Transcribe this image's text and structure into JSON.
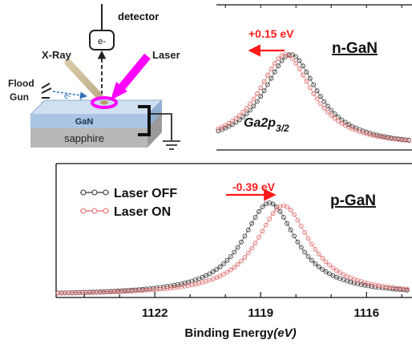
{
  "colors": {
    "off": "#333333",
    "on": "#e06a6a",
    "shift_arrow": "#ff1a1a",
    "laser": "#ff00ff",
    "gan_top": "#cfe0f2",
    "gan_side": "#8faed0",
    "sapphire": "#b8b8b8"
  },
  "schematic": {
    "detector_label": "detector",
    "detector_symbol": "e-",
    "xray_label": "X-Ray",
    "laser_label": "Laser",
    "flood_gun_label_1": "Flood",
    "flood_gun_label_2": "Gun",
    "electron_symbol": "e-",
    "gan_label": "GaN",
    "sapphire_label": "sapphire",
    "icons": [
      "detector-box-icon",
      "x-ray-beam-icon",
      "laser-beam-icon",
      "flood-gun-icon",
      "ground-icon"
    ]
  },
  "chart_data": [
    {
      "type": "line",
      "panel": "top",
      "title": "n-GaN",
      "peak_label": "Ga2p3/2",
      "shift_label": "+0.15 eV",
      "shift_direction": "left",
      "x_reversed": true,
      "xlim": [
        1124.8,
        1114.2
      ],
      "grid": false,
      "series": [
        {
          "style": "black-circles",
          "peak": 118.15,
          "width": 1.0,
          "amplitude": 1.0
        },
        {
          "style": "red-circles",
          "peak": 118.3,
          "width": 1.0,
          "amplitude": 1.0
        }
      ]
    },
    {
      "type": "line",
      "panel": "bottom",
      "title": "p-GaN",
      "shift_label": "-0.39 eV",
      "shift_direction": "right",
      "x_reversed": true,
      "xlim": [
        1124.8,
        1114.2
      ],
      "xticks": [
        1122,
        1119,
        1116
      ],
      "xlabel": "Binding Energy",
      "xlabel_unit": "(eV)",
      "grid": false,
      "legend_position": "top-left",
      "series": [
        {
          "name": "Laser OFF",
          "style": "black-circles",
          "peak": 1118.75,
          "width": 1.0,
          "amplitude": 1.0
        },
        {
          "name": "Laser ON",
          "style": "red-circles",
          "peak": 1118.36,
          "width": 1.0,
          "amplitude": 0.97
        }
      ]
    }
  ]
}
